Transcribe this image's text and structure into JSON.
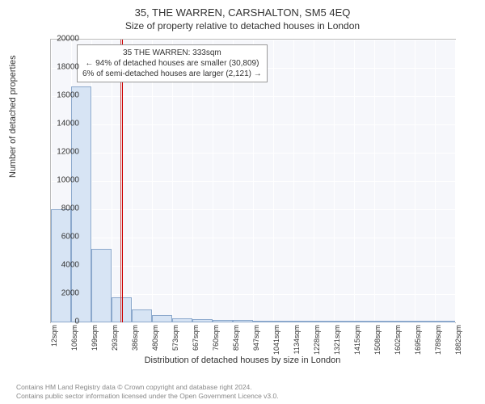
{
  "titles": {
    "main": "35, THE WARREN, CARSHALTON, SM5 4EQ",
    "sub": "Size of property relative to detached houses in London"
  },
  "axes": {
    "ylabel": "Number of detached properties",
    "xlabel": "Distribution of detached houses by size in London",
    "ylim": [
      0,
      20000
    ],
    "ytick_step": 2000,
    "yticks": [
      0,
      2000,
      4000,
      6000,
      8000,
      10000,
      12000,
      14000,
      16000,
      18000,
      20000
    ],
    "xticks": [
      "12sqm",
      "106sqm",
      "199sqm",
      "293sqm",
      "386sqm",
      "480sqm",
      "573sqm",
      "667sqm",
      "760sqm",
      "854sqm",
      "947sqm",
      "1041sqm",
      "1134sqm",
      "1228sqm",
      "1321sqm",
      "1415sqm",
      "1508sqm",
      "1602sqm",
      "1695sqm",
      "1789sqm",
      "1882sqm"
    ]
  },
  "histogram": {
    "type": "histogram",
    "bin_width_sqm": 93.5,
    "bar_color": "#d7e4f4",
    "bar_border": "#8ba8cc",
    "background_color": "#f6f7fb",
    "grid_color": "#ffffff",
    "values": [
      8000,
      16700,
      5200,
      1800,
      900,
      500,
      300,
      250,
      200,
      150,
      120,
      100,
      80,
      60,
      50,
      40,
      30,
      20,
      15,
      10
    ]
  },
  "reference_lines": [
    {
      "x_sqm": 333,
      "color": "#cc4444",
      "label": "property-size-line"
    },
    {
      "x_sqm": 340,
      "color": "#cc0000",
      "label": "threshold-line"
    }
  ],
  "annotation": {
    "line1": "35 THE WARREN: 333sqm",
    "line2": "← 94% of detached houses are smaller (30,809)",
    "line3": "6% of semi-detached houses are larger (2,121) →"
  },
  "footer": {
    "line1": "Contains HM Land Registry data © Crown copyright and database right 2024.",
    "line2": "Contains public sector information licensed under the Open Government Licence v3.0."
  }
}
